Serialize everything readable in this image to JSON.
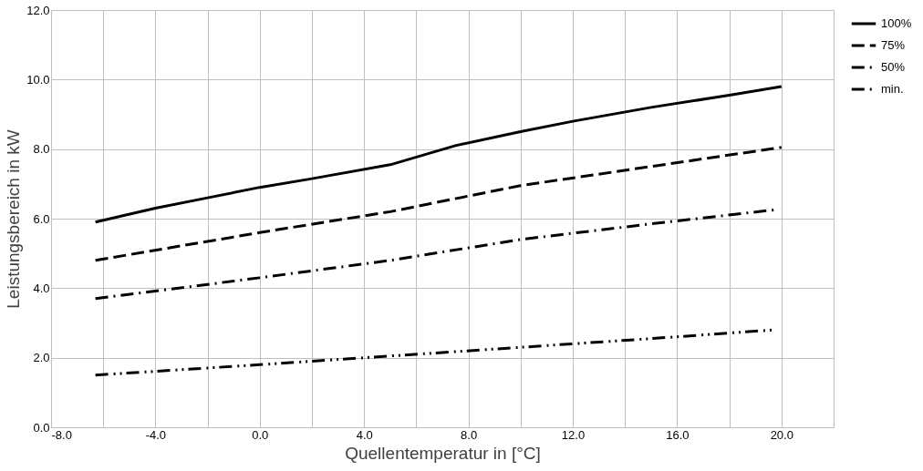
{
  "chart_data": {
    "type": "line",
    "xlabel": "Quellentemperatur in [°C]",
    "ylabel": "Leistungsbereich in kW",
    "xlim": [
      -8,
      22
    ],
    "xticks": [
      {
        "value": -8,
        "label": "-8.0"
      },
      {
        "value": -6,
        "label": null
      },
      {
        "value": -4,
        "label": "-4.0"
      },
      {
        "value": -2,
        "label": null
      },
      {
        "value": 0,
        "label": "0.0"
      },
      {
        "value": 2,
        "label": null
      },
      {
        "value": 4,
        "label": "4.0"
      },
      {
        "value": 6,
        "label": null
      },
      {
        "value": 8,
        "label": "8.0"
      },
      {
        "value": 10,
        "label": null
      },
      {
        "value": 12,
        "label": "12.0"
      },
      {
        "value": 14,
        "label": null
      },
      {
        "value": 16,
        "label": "16.0"
      },
      {
        "value": 18,
        "label": null
      },
      {
        "value": 20,
        "label": "20.0"
      },
      {
        "value": 22,
        "label": null
      }
    ],
    "ylim": [
      0,
      12
    ],
    "yticks": [
      {
        "value": 0,
        "label": "0.0"
      },
      {
        "value": 2,
        "label": "2.0"
      },
      {
        "value": 4,
        "label": "4.0"
      },
      {
        "value": 6,
        "label": "6.0"
      },
      {
        "value": 8,
        "label": "8.0"
      },
      {
        "value": 10,
        "label": "10.0"
      },
      {
        "value": 12,
        "label": "12.0"
      }
    ],
    "grid": true,
    "legend": "right",
    "series": [
      {
        "name": "100%",
        "color": "#000000",
        "line_style": "solid",
        "x": [
          -6.3,
          -4,
          -2,
          0,
          2,
          5,
          7.5,
          10,
          12,
          15,
          18,
          20
        ],
        "values": [
          5.9,
          6.3,
          6.6,
          6.9,
          7.15,
          7.55,
          8.1,
          8.5,
          8.8,
          9.2,
          9.55,
          9.8
        ]
      },
      {
        "name": "75%",
        "color": "#000000",
        "line_style": "dashed",
        "x": [
          -6.3,
          0,
          5,
          10,
          15,
          20
        ],
        "values": [
          4.8,
          5.6,
          6.2,
          6.95,
          7.5,
          8.05
        ]
      },
      {
        "name": "50%",
        "color": "#000000",
        "line_style": "dashdot",
        "x": [
          -6.3,
          0,
          5,
          10,
          15,
          19.7
        ],
        "values": [
          3.7,
          4.3,
          4.8,
          5.4,
          5.85,
          6.25
        ]
      },
      {
        "name": "min.",
        "color": "#000000",
        "line_style": "dashdotdot",
        "x": [
          -6.3,
          0,
          5,
          10,
          15,
          19.7
        ],
        "values": [
          1.5,
          1.8,
          2.05,
          2.3,
          2.55,
          2.8
        ]
      }
    ]
  }
}
